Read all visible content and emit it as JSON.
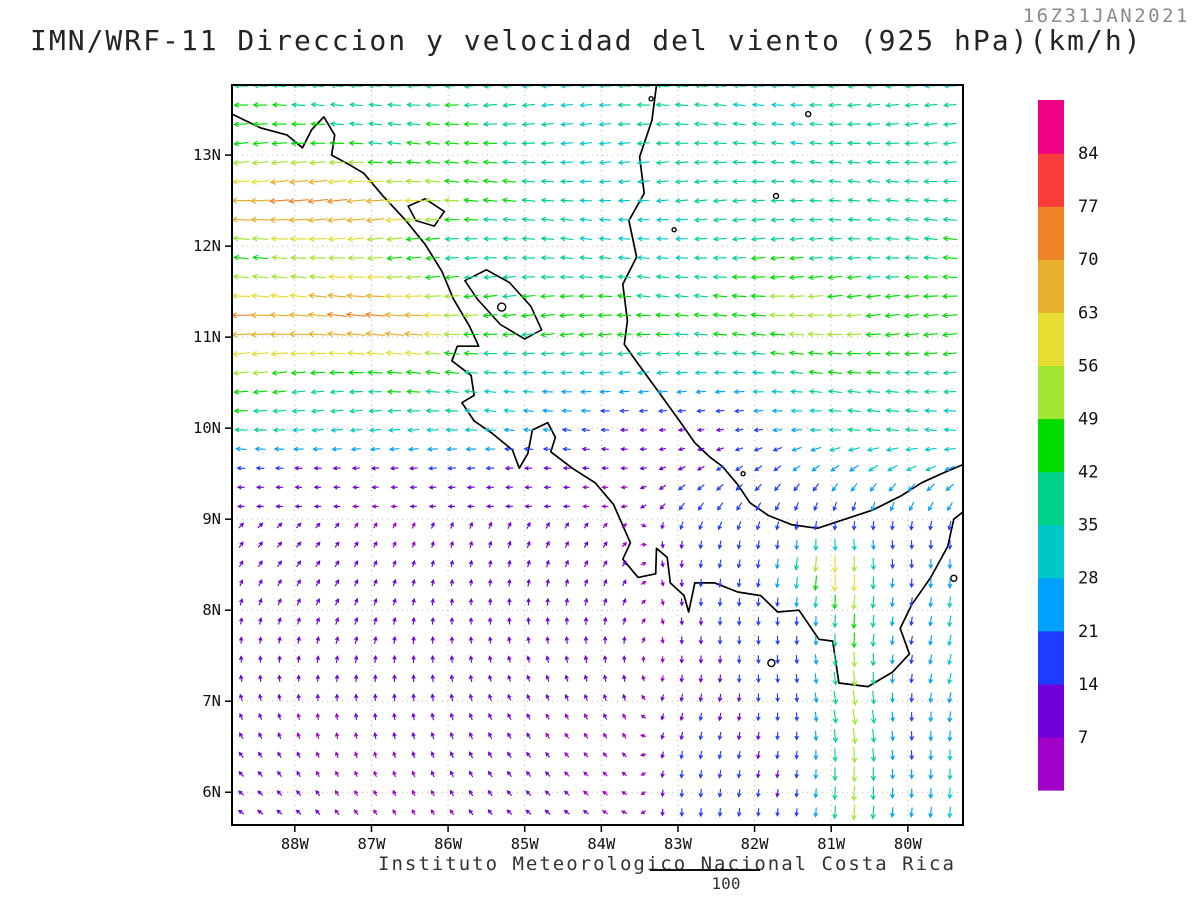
{
  "header": {
    "timestamp": "16Z31JAN2021",
    "title": "IMN/WRF-11 Direccion y velocidad del viento (925 hPa)(km/h)"
  },
  "footer": {
    "credit": "Instituto Meteorologico Nacional Costa Rica",
    "scale_label": "100"
  },
  "chart_data": {
    "type": "vector_field",
    "title": "IMN/WRF-11 Direccion y velocidad del viento (925 hPa)(km/h)",
    "model": "IMN/WRF-11",
    "field": "Direccion y velocidad del viento",
    "level": "925 hPa",
    "units": "km/h",
    "valid_time": "16Z31JAN2021",
    "x_axis": {
      "tick_labels": [
        "88W",
        "87W",
        "86W",
        "85W",
        "84W",
        "83W",
        "82W",
        "81W",
        "80W"
      ],
      "tick_values_deg": [
        -88,
        -87,
        -86,
        -85,
        -84,
        -83,
        -82,
        -81,
        -80
      ],
      "range_deg": [
        -88.82,
        -79.28
      ]
    },
    "y_axis": {
      "tick_labels": [
        "13N",
        "12N",
        "11N",
        "10N",
        "9N",
        "8N",
        "7N",
        "6N"
      ],
      "tick_values_deg": [
        13,
        12,
        11,
        10,
        9,
        8,
        7,
        6
      ],
      "range_deg": [
        5.64,
        13.77
      ]
    },
    "color_scale": {
      "position": "right",
      "levels_kmh": [
        7,
        14,
        21,
        28,
        35,
        42,
        49,
        56,
        63,
        70,
        77,
        84
      ],
      "colors": [
        "#a000c8",
        "#6e00dc",
        "#1e3cff",
        "#00a0ff",
        "#00c8c8",
        "#00d28c",
        "#00dc00",
        "#a0e632",
        "#e6dc32",
        "#e6af2d",
        "#f08228",
        "#fa3c3c",
        "#f00082"
      ]
    },
    "graticule": "dotted grid at 1-degree intervals",
    "features": [
      {
        "region": "Papagayo gap jet, 10.5N-11.7N west of 85.5W over Pacific",
        "wind": "easterly (arrows toward W), 56-77 km/h, orange-red arrows"
      },
      {
        "region": "Secondary jet streak near 12.4N west of 86W",
        "wind": "easterly, 56-70 km/h, yellow-amber arrows"
      },
      {
        "region": "Trade easterlies north of 10N (Nicaragua and NW Caribbean)",
        "wind": "easterly, 28-49 km/h, cyan-green arrows"
      },
      {
        "region": "Caribbean flow east of 83W between 9N and 13.7N",
        "wind": "toward W, turning SW then S as it crosses Panama, 28-45 km/h, green-cyan"
      },
      {
        "region": "Cross-isthmus outflow 81W-83W south of 9N",
        "wind": "toward S, 14-28 km/h, blue-cyan arrows"
      },
      {
        "region": "Panama gap jet near 80.7W south of 8N",
        "wind": "northerly outflow toward S, 42-63 km/h, green to yellow arrows"
      },
      {
        "region": "Azuero gap streak near 8.4N, 81W",
        "wind": "toward S, 56-70 km/h, yellow-orange arrows"
      },
      {
        "region": "Lee pocket just south of 10N between 84W and 82W",
        "wind": "weak variable, under 14 km/h, purple arrows"
      },
      {
        "region": "SW Pacific recirculation south of 9.5N west of 83.5W",
        "wind": "weak, rotating from W at 9N through NE to NW near 6N, under 14 km/h, purple"
      }
    ]
  },
  "map": {
    "coastlines": [
      [
        [
          -88.82,
          13.45
        ],
        [
          -88.45,
          13.3
        ],
        [
          -88.1,
          13.22
        ],
        [
          -87.9,
          13.08
        ],
        [
          -87.78,
          13.28
        ],
        [
          -87.62,
          13.42
        ],
        [
          -87.48,
          13.22
        ],
        [
          -87.52,
          13.0
        ],
        [
          -87.3,
          12.9
        ],
        [
          -87.1,
          12.8
        ],
        [
          -86.85,
          12.55
        ],
        [
          -86.55,
          12.28
        ],
        [
          -86.3,
          12.02
        ],
        [
          -86.08,
          11.72
        ],
        [
          -85.93,
          11.42
        ],
        [
          -85.72,
          11.12
        ],
        [
          -85.6,
          10.9
        ],
        [
          -85.88,
          10.9
        ],
        [
          -85.95,
          10.74
        ],
        [
          -85.7,
          10.58
        ],
        [
          -85.66,
          10.36
        ],
        [
          -85.82,
          10.28
        ],
        [
          -85.66,
          10.08
        ],
        [
          -85.42,
          9.94
        ],
        [
          -85.16,
          9.76
        ],
        [
          -85.07,
          9.56
        ],
        [
          -84.96,
          9.72
        ],
        [
          -84.9,
          9.98
        ],
        [
          -84.7,
          10.06
        ],
        [
          -84.6,
          9.9
        ],
        [
          -84.66,
          9.74
        ],
        [
          -84.38,
          9.56
        ],
        [
          -84.08,
          9.4
        ],
        [
          -83.84,
          9.16
        ],
        [
          -83.62,
          8.74
        ],
        [
          -83.72,
          8.56
        ],
        [
          -83.52,
          8.36
        ],
        [
          -83.29,
          8.4
        ],
        [
          -83.28,
          8.68
        ],
        [
          -83.14,
          8.58
        ],
        [
          -83.1,
          8.3
        ],
        [
          -82.92,
          8.16
        ],
        [
          -82.86,
          7.98
        ],
        [
          -82.78,
          8.3
        ],
        [
          -82.52,
          8.3
        ],
        [
          -82.22,
          8.2
        ],
        [
          -81.92,
          8.16
        ],
        [
          -81.7,
          7.98
        ],
        [
          -81.42,
          8.0
        ],
        [
          -81.16,
          7.68
        ],
        [
          -80.98,
          7.66
        ],
        [
          -80.9,
          7.2
        ],
        [
          -80.52,
          7.16
        ],
        [
          -80.2,
          7.32
        ],
        [
          -79.98,
          7.52
        ],
        [
          -80.1,
          7.8
        ],
        [
          -79.95,
          8.06
        ],
        [
          -79.7,
          8.36
        ],
        [
          -79.48,
          8.7
        ],
        [
          -79.4,
          9.0
        ],
        [
          -79.28,
          9.08
        ]
      ],
      [
        [
          -83.28,
          13.77
        ],
        [
          -83.34,
          13.38
        ],
        [
          -83.5,
          12.98
        ],
        [
          -83.44,
          12.58
        ],
        [
          -83.64,
          12.28
        ],
        [
          -83.54,
          11.88
        ],
        [
          -83.72,
          11.58
        ],
        [
          -83.66,
          11.18
        ],
        [
          -83.7,
          10.92
        ],
        [
          -83.54,
          10.73
        ],
        [
          -83.28,
          10.43
        ],
        [
          -82.98,
          10.08
        ],
        [
          -82.78,
          9.84
        ],
        [
          -82.58,
          9.68
        ],
        [
          -82.42,
          9.58
        ],
        [
          -82.22,
          9.38
        ],
        [
          -82.06,
          9.18
        ],
        [
          -81.82,
          9.04
        ],
        [
          -81.52,
          8.94
        ],
        [
          -81.18,
          8.9
        ],
        [
          -80.82,
          9.0
        ],
        [
          -80.46,
          9.1
        ],
        [
          -80.08,
          9.26
        ],
        [
          -79.82,
          9.4
        ],
        [
          -79.56,
          9.5
        ],
        [
          -79.28,
          9.6
        ]
      ]
    ],
    "lakes": [
      [
        [
          -86.52,
          12.44
        ],
        [
          -86.3,
          12.52
        ],
        [
          -86.05,
          12.38
        ],
        [
          -86.18,
          12.22
        ],
        [
          -86.42,
          12.28
        ]
      ],
      [
        [
          -85.78,
          11.62
        ],
        [
          -85.5,
          11.74
        ],
        [
          -85.2,
          11.6
        ],
        [
          -84.92,
          11.34
        ],
        [
          -84.78,
          11.08
        ],
        [
          -85.0,
          10.98
        ],
        [
          -85.32,
          11.14
        ],
        [
          -85.62,
          11.42
        ]
      ]
    ],
    "islands": [
      [
        -83.35,
        13.62,
        2
      ],
      [
        -81.3,
        13.45,
        2.5
      ],
      [
        -81.72,
        12.55,
        2.5
      ],
      [
        -83.05,
        12.18,
        2
      ],
      [
        -85.3,
        11.33,
        4
      ],
      [
        -81.78,
        7.42,
        3.5
      ],
      [
        -79.4,
        8.35,
        3
      ],
      [
        -82.15,
        9.5,
        2
      ]
    ]
  }
}
